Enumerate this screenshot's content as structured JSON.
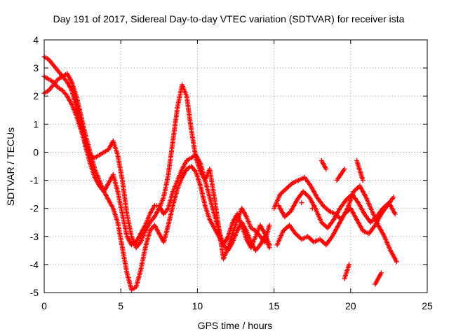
{
  "chart_data": {
    "type": "scatter",
    "title": "Day 191 of 2017, Sidereal Day-to-day VTEC variation (SDTVAR) for receiver ista",
    "xlabel": "GPS time / hours",
    "ylabel": "SDTVAR / TECUs",
    "xlim": [
      0,
      25
    ],
    "ylim": [
      -5,
      4
    ],
    "x_ticks": [
      "0",
      "5",
      "10",
      "15",
      "20",
      "25"
    ],
    "y_ticks": [
      "-5",
      "-4",
      "-3",
      "-2",
      "-1",
      "0",
      "1",
      "2",
      "3",
      "4"
    ],
    "grid": true,
    "marker": "+",
    "color": "#ff0000",
    "series": [
      {
        "points": [
          [
            0.0,
            3.4
          ],
          [
            0.3,
            3.3
          ],
          [
            0.6,
            3.1
          ],
          [
            0.9,
            2.9
          ],
          [
            1.2,
            2.7
          ],
          [
            1.5,
            2.5
          ],
          [
            1.8,
            2.2
          ],
          [
            2.1,
            1.6
          ],
          [
            2.4,
            0.9
          ],
          [
            2.7,
            0.2
          ],
          [
            3.0,
            -0.4
          ],
          [
            3.3,
            -0.9
          ],
          [
            3.6,
            -1.2
          ],
          [
            3.9,
            -1.4
          ],
          [
            4.2,
            -1.1
          ],
          [
            4.5,
            -0.8
          ],
          [
            4.8,
            -1.4
          ],
          [
            5.1,
            -2.2
          ],
          [
            5.4,
            -3.0
          ],
          [
            5.7,
            -3.3
          ],
          [
            6.0,
            -3.2
          ],
          [
            6.3,
            -2.9
          ],
          [
            6.6,
            -2.6
          ],
          [
            6.9,
            -2.2
          ],
          [
            7.2,
            -1.9
          ],
          [
            7.5,
            -1.9
          ],
          [
            7.8,
            -2.2
          ],
          [
            8.1,
            -2.0
          ],
          [
            8.4,
            -1.4
          ],
          [
            8.7,
            -1.0
          ],
          [
            9.0,
            -0.6
          ],
          [
            9.3,
            -0.3
          ],
          [
            9.6,
            -0.2
          ],
          [
            9.9,
            -0.1
          ],
          [
            10.2,
            -0.4
          ],
          [
            10.5,
            -1.0
          ],
          [
            10.8,
            -1.6
          ],
          [
            11.1,
            -2.2
          ],
          [
            11.4,
            -2.8
          ],
          [
            11.7,
            -3.3
          ],
          [
            12.0,
            -3.0
          ],
          [
            12.3,
            -2.5
          ],
          [
            12.6,
            -2.2
          ],
          [
            12.9,
            -2.6
          ],
          [
            13.2,
            -3.1
          ],
          [
            13.5,
            -3.4
          ],
          [
            13.8,
            -3.0
          ],
          [
            14.1,
            -2.6
          ],
          [
            14.4,
            -2.9
          ],
          [
            14.7,
            -3.3
          ]
        ]
      },
      {
        "points": [
          [
            0.0,
            2.7
          ],
          [
            0.3,
            2.6
          ],
          [
            0.6,
            2.5
          ],
          [
            0.9,
            2.3
          ],
          [
            1.2,
            2.2
          ],
          [
            1.5,
            2.0
          ],
          [
            1.8,
            1.7
          ],
          [
            2.1,
            1.3
          ],
          [
            2.4,
            0.8
          ],
          [
            2.7,
            0.3
          ],
          [
            3.0,
            -0.1
          ],
          [
            3.3,
            -0.2
          ],
          [
            3.6,
            -0.1
          ],
          [
            3.9,
            0.0
          ],
          [
            4.2,
            0.1
          ],
          [
            4.5,
            0.4
          ],
          [
            4.8,
            -0.1
          ],
          [
            5.1,
            -1.0
          ],
          [
            5.4,
            -2.2
          ],
          [
            5.7,
            -3.0
          ],
          [
            6.0,
            -3.4
          ],
          [
            6.3,
            -3.2
          ],
          [
            6.6,
            -2.8
          ],
          [
            6.9,
            -2.5
          ],
          [
            7.2,
            -2.3
          ],
          [
            7.5,
            -2.0
          ],
          [
            7.8,
            -1.6
          ],
          [
            8.1,
            -0.8
          ],
          [
            8.4,
            0.4
          ],
          [
            8.7,
            1.6
          ],
          [
            9.0,
            2.4
          ],
          [
            9.3,
            2.0
          ],
          [
            9.6,
            0.8
          ],
          [
            9.9,
            -0.2
          ],
          [
            10.2,
            -0.7
          ],
          [
            10.5,
            -1.0
          ],
          [
            10.8,
            -0.6
          ],
          [
            11.1,
            -1.6
          ],
          [
            11.4,
            -2.7
          ],
          [
            11.7,
            -3.8
          ],
          [
            12.0,
            -3.4
          ],
          [
            12.3,
            -2.9
          ],
          [
            12.6,
            -2.4
          ],
          [
            12.9,
            -2.0
          ],
          [
            13.2,
            -2.3
          ],
          [
            13.5,
            -2.7
          ],
          [
            13.8,
            -2.8
          ],
          [
            14.1,
            -3.0
          ],
          [
            14.4,
            -3.2
          ],
          [
            14.7,
            -2.6
          ]
        ]
      },
      {
        "points": [
          [
            0.0,
            2.1
          ],
          [
            0.3,
            2.2
          ],
          [
            0.6,
            2.4
          ],
          [
            0.9,
            2.6
          ],
          [
            1.2,
            2.7
          ],
          [
            1.5,
            2.8
          ],
          [
            1.8,
            2.5
          ],
          [
            2.1,
            2.0
          ],
          [
            2.4,
            1.3
          ],
          [
            2.7,
            0.6
          ],
          [
            3.0,
            0.0
          ],
          [
            3.3,
            -0.6
          ],
          [
            3.6,
            -1.0
          ],
          [
            3.9,
            -1.4
          ],
          [
            4.2,
            -1.7
          ],
          [
            4.5,
            -2.0
          ],
          [
            4.8,
            -2.5
          ],
          [
            5.1,
            -3.4
          ],
          [
            5.4,
            -4.3
          ],
          [
            5.7,
            -4.9
          ],
          [
            6.0,
            -4.8
          ],
          [
            6.3,
            -4.2
          ],
          [
            6.6,
            -3.4
          ],
          [
            6.9,
            -2.8
          ],
          [
            7.2,
            -2.6
          ],
          [
            7.5,
            -2.9
          ],
          [
            7.8,
            -3.2
          ],
          [
            8.1,
            -2.6
          ],
          [
            8.4,
            -1.9
          ],
          [
            8.7,
            -1.3
          ],
          [
            9.0,
            -0.9
          ],
          [
            9.3,
            -0.6
          ],
          [
            9.6,
            -0.5
          ],
          [
            9.9,
            -0.7
          ],
          [
            10.2,
            -1.2
          ],
          [
            10.5,
            -1.9
          ],
          [
            10.8,
            -2.4
          ],
          [
            11.1,
            -2.7
          ],
          [
            11.4,
            -3.0
          ],
          [
            11.7,
            -3.3
          ],
          [
            12.0,
            -3.5
          ],
          [
            12.3,
            -3.2
          ],
          [
            12.6,
            -2.8
          ],
          [
            12.9,
            -2.5
          ],
          [
            13.2,
            -2.8
          ],
          [
            13.5,
            -3.2
          ],
          [
            13.8,
            -3.5
          ],
          [
            14.1,
            -3.3
          ],
          [
            14.4,
            -3.0
          ],
          [
            14.7,
            -3.4
          ]
        ]
      },
      {
        "points": [
          [
            15.0,
            -2.0
          ],
          [
            15.4,
            -1.5
          ],
          [
            15.8,
            -1.3
          ],
          [
            16.2,
            -1.1
          ],
          [
            16.6,
            -1.0
          ],
          [
            17.0,
            -0.9
          ],
          [
            17.4,
            -1.2
          ],
          [
            17.8,
            -1.6
          ],
          [
            18.2,
            -1.9
          ],
          [
            18.6,
            -2.1
          ],
          [
            19.0,
            -2.2
          ],
          [
            19.4,
            -2.4
          ],
          [
            19.8,
            -2.0
          ],
          [
            20.2,
            -1.4
          ],
          [
            20.6,
            -1.2
          ],
          [
            21.0,
            -1.6
          ],
          [
            21.4,
            -2.1
          ],
          [
            21.8,
            -2.6
          ],
          [
            22.2,
            -3.0
          ],
          [
            22.6,
            -3.5
          ],
          [
            23.0,
            -3.9
          ],
          [
            18.1,
            -0.3
          ],
          [
            18.4,
            -0.6
          ],
          [
            17.5,
            -2.0
          ],
          [
            16.8,
            -1.8
          ],
          [
            19.1,
            -1.0
          ],
          [
            19.6,
            -0.6
          ],
          [
            20.4,
            -0.3
          ],
          [
            20.8,
            -1.0
          ]
        ]
      },
      {
        "points": [
          [
            15.2,
            -3.3
          ],
          [
            15.6,
            -2.8
          ],
          [
            16.0,
            -2.6
          ],
          [
            16.4,
            -2.9
          ],
          [
            16.8,
            -3.1
          ],
          [
            17.2,
            -3.0
          ],
          [
            17.6,
            -3.2
          ],
          [
            18.0,
            -3.1
          ],
          [
            18.4,
            -3.3
          ],
          [
            18.8,
            -3.0
          ],
          [
            19.2,
            -2.6
          ],
          [
            19.6,
            -2.2
          ],
          [
            20.0,
            -2.0
          ],
          [
            20.4,
            -2.4
          ],
          [
            20.8,
            -2.8
          ],
          [
            21.2,
            -2.9
          ],
          [
            21.6,
            -2.6
          ],
          [
            22.0,
            -2.2
          ],
          [
            22.4,
            -1.9
          ],
          [
            22.8,
            -1.6
          ],
          [
            19.6,
            -4.5
          ],
          [
            19.9,
            -4.0
          ],
          [
            21.6,
            -4.7
          ],
          [
            22.0,
            -4.3
          ]
        ]
      },
      {
        "points": [
          [
            15.3,
            -1.9
          ],
          [
            15.7,
            -2.3
          ],
          [
            16.1,
            -2.1
          ],
          [
            16.5,
            -1.7
          ],
          [
            16.9,
            -1.4
          ],
          [
            17.3,
            -1.6
          ],
          [
            17.7,
            -2.0
          ],
          [
            18.1,
            -2.5
          ],
          [
            18.5,
            -2.7
          ],
          [
            18.9,
            -2.4
          ],
          [
            19.3,
            -2.0
          ],
          [
            19.7,
            -1.7
          ],
          [
            20.1,
            -1.5
          ],
          [
            20.5,
            -1.8
          ],
          [
            20.9,
            -2.2
          ],
          [
            21.3,
            -2.5
          ],
          [
            21.7,
            -2.3
          ],
          [
            22.1,
            -2.0
          ],
          [
            22.5,
            -1.8
          ],
          [
            22.9,
            -2.2
          ]
        ]
      }
    ]
  }
}
